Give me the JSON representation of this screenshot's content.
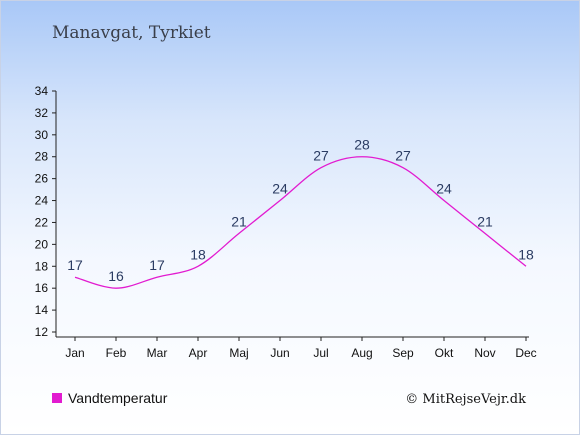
{
  "chart_data": {
    "type": "line",
    "title": "Manavgat, Tyrkiet",
    "categories": [
      "Jan",
      "Feb",
      "Mar",
      "Apr",
      "Maj",
      "Jun",
      "Jul",
      "Aug",
      "Sep",
      "Okt",
      "Nov",
      "Dec"
    ],
    "series": [
      {
        "name": "Vandtemperatur",
        "values": [
          17,
          16,
          17,
          18,
          21,
          24,
          27,
          28,
          27,
          24,
          21,
          18
        ],
        "color": "#e21bd0"
      }
    ],
    "ylim": [
      12,
      34
    ],
    "yticks": [
      12,
      14,
      16,
      18,
      20,
      22,
      24,
      26,
      28,
      30,
      32,
      34
    ],
    "grid": false,
    "legend": "bottom-left"
  },
  "credit": "© MitRejseVejr.dk"
}
